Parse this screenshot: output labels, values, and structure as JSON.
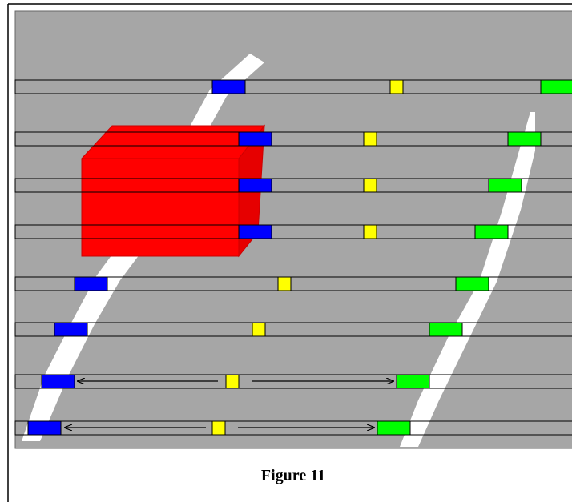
{
  "caption": "Figure 11"
}
